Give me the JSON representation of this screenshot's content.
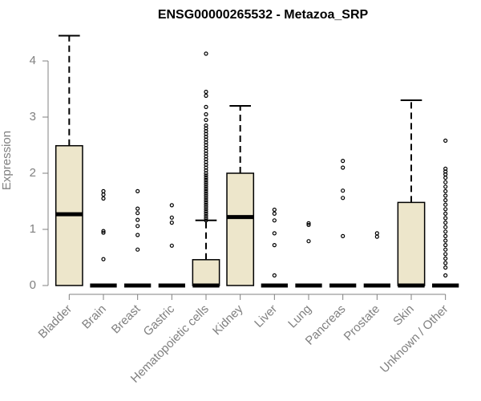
{
  "chart_data": {
    "type": "box",
    "title": "ENSG00000265532 - Metazoa_SRP",
    "xlabel": "",
    "ylabel": "Expression",
    "ylim": [
      0,
      4.5
    ],
    "yticks": [
      0,
      1,
      2,
      3,
      4
    ],
    "grid": false,
    "box_fill": "#ede6cb",
    "categories": [
      "Bladder",
      "Brain",
      "Breast",
      "Gastric",
      "Hematopoietic cells",
      "Kidney",
      "Liver",
      "Lung",
      "Pancreas",
      "Prostate",
      "Skin",
      "Unknown / Other"
    ],
    "boxes": [
      {
        "q1": 0,
        "median": 1.27,
        "q3": 2.49,
        "whisker_low": 0,
        "whisker_high": 4.45,
        "outliers": []
      },
      {
        "q1": 0,
        "median": 0,
        "q3": 0,
        "whisker_low": 0,
        "whisker_high": 0,
        "outliers": [
          0.47,
          0.94,
          0.97,
          1.55,
          1.62,
          1.68
        ]
      },
      {
        "q1": 0,
        "median": 0,
        "q3": 0,
        "whisker_low": 0,
        "whisker_high": 0,
        "outliers": [
          0.64,
          0.9,
          1.06,
          1.17,
          1.29,
          1.37,
          1.68
        ]
      },
      {
        "q1": 0,
        "median": 0,
        "q3": 0,
        "whisker_low": 0,
        "whisker_high": 0,
        "outliers": [
          0.71,
          1.12,
          1.21,
          1.43
        ]
      },
      {
        "q1": 0,
        "median": 0,
        "q3": 0.46,
        "whisker_low": 0,
        "whisker_high": 1.16,
        "outliers": [
          1.16,
          1.2,
          1.24,
          1.28,
          1.32,
          1.36,
          1.4,
          1.44,
          1.48,
          1.52,
          1.56,
          1.6,
          1.64,
          1.68,
          1.72,
          1.76,
          1.8,
          1.84,
          1.88,
          1.92,
          1.96,
          2.0,
          2.05,
          2.1,
          2.15,
          2.2,
          2.25,
          2.3,
          2.35,
          2.4,
          2.45,
          2.5,
          2.55,
          2.6,
          2.65,
          2.7,
          2.75,
          2.8,
          2.85,
          2.95,
          3.05,
          3.18,
          3.38,
          3.45,
          4.13
        ]
      },
      {
        "q1": 0,
        "median": 1.22,
        "q3": 2.0,
        "whisker_low": 0,
        "whisker_high": 3.2,
        "outliers": []
      },
      {
        "q1": 0,
        "median": 0,
        "q3": 0,
        "whisker_low": 0,
        "whisker_high": 0,
        "outliers": [
          0.18,
          0.72,
          0.93,
          1.16,
          1.28,
          1.35
        ]
      },
      {
        "q1": 0,
        "median": 0,
        "q3": 0,
        "whisker_low": 0,
        "whisker_high": 0,
        "outliers": [
          0.79,
          1.08,
          1.11
        ]
      },
      {
        "q1": 0,
        "median": 0,
        "q3": 0,
        "whisker_low": 0,
        "whisker_high": 0,
        "outliers": [
          0.88,
          1.56,
          1.69,
          2.1,
          2.22
        ]
      },
      {
        "q1": 0,
        "median": 0,
        "q3": 0,
        "whisker_low": 0,
        "whisker_high": 0,
        "outliers": [
          0.87,
          0.93
        ]
      },
      {
        "q1": 0,
        "median": 0,
        "q3": 1.48,
        "whisker_low": 0,
        "whisker_high": 3.3,
        "outliers": []
      },
      {
        "q1": 0,
        "median": 0,
        "q3": 0,
        "whisker_low": 0,
        "whisker_high": 0,
        "outliers": [
          0.18,
          0.32,
          0.4,
          0.48,
          0.56,
          0.64,
          0.72,
          0.8,
          0.88,
          0.96,
          1.04,
          1.12,
          1.2,
          1.28,
          1.36,
          1.44,
          1.52,
          1.6,
          1.68,
          1.76,
          1.84,
          1.92,
          1.98,
          2.03,
          2.08,
          2.58
        ]
      }
    ]
  }
}
